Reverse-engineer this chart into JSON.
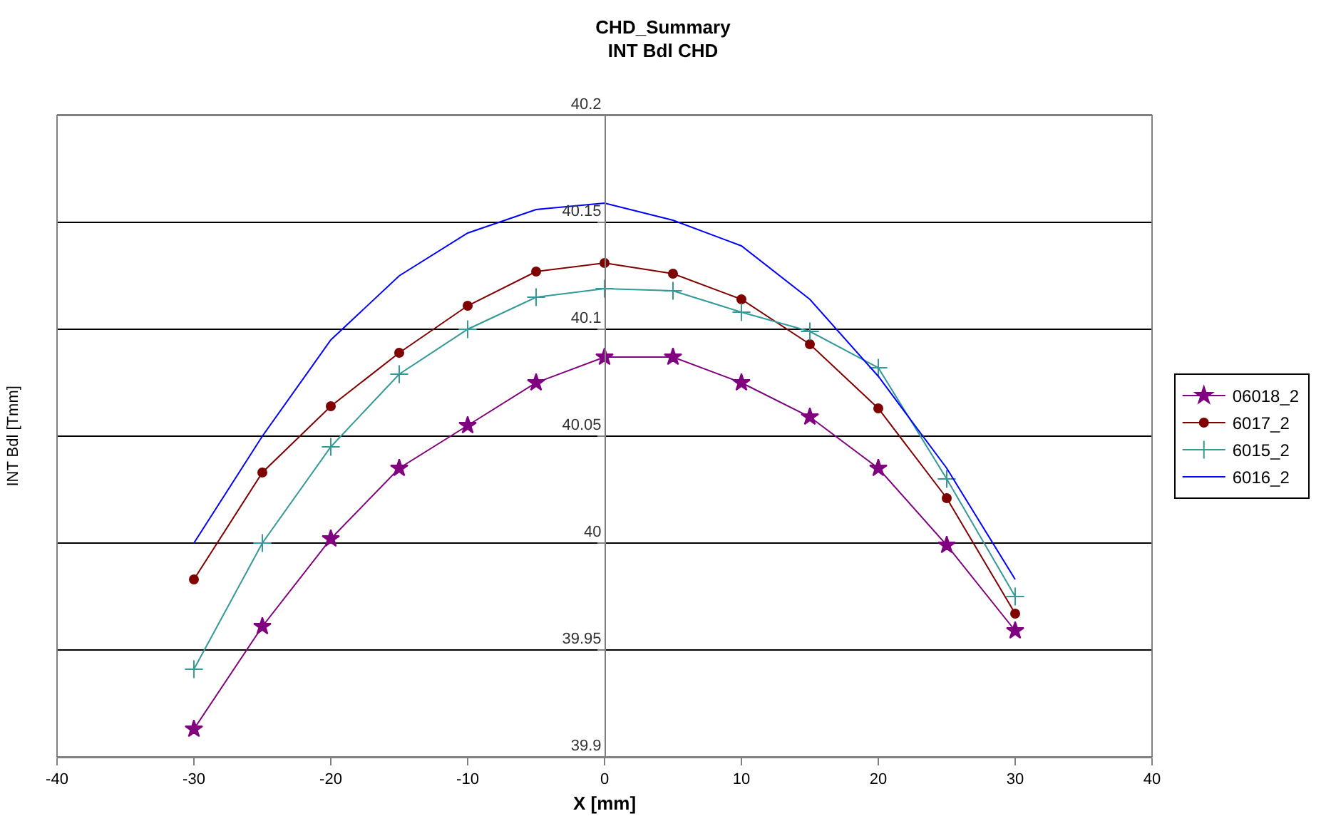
{
  "chart_data": {
    "type": "line",
    "title": "CHD_Summary\nINT Bdl CHD",
    "xlabel": "X [mm]",
    "ylabel": "INT Bdl [Tmm]",
    "x": [
      -30,
      -25,
      -20,
      -15,
      -10,
      -5,
      0,
      5,
      10,
      15,
      20,
      25,
      30
    ],
    "series": [
      {
        "name": "06018_2",
        "color": "#800080",
        "marker": "star",
        "values": [
          39.913,
          39.961,
          40.002,
          40.035,
          40.055,
          40.075,
          40.087,
          40.087,
          40.075,
          40.059,
          40.035,
          39.999,
          39.959
        ]
      },
      {
        "name": "6017_2",
        "color": "#800000",
        "marker": "circle",
        "values": [
          39.983,
          40.033,
          40.064,
          40.089,
          40.111,
          40.127,
          40.131,
          40.126,
          40.114,
          40.093,
          40.063,
          40.021,
          39.967
        ]
      },
      {
        "name": "6015_2",
        "color": "#339999",
        "marker": "cross",
        "values": [
          39.941,
          40.0,
          40.045,
          40.079,
          40.1,
          40.115,
          40.119,
          40.118,
          40.108,
          40.099,
          40.082,
          40.03,
          39.975
        ]
      },
      {
        "name": "6016_2",
        "color": "#0000ff",
        "marker": "none",
        "values": [
          40.0,
          40.05,
          40.095,
          40.125,
          40.145,
          40.156,
          40.159,
          40.151,
          40.139,
          40.114,
          40.078,
          40.035,
          39.983
        ]
      }
    ],
    "xlim": [
      -40,
      40
    ],
    "xticks": [
      -40,
      -30,
      -20,
      -10,
      0,
      10,
      20,
      30,
      40
    ],
    "ylim": [
      39.9,
      40.2
    ],
    "yticks": [
      39.9,
      39.95,
      40,
      40.05,
      40.1,
      40.15,
      40.2
    ],
    "grid": "y",
    "legend": "right",
    "line_style": "solid"
  }
}
